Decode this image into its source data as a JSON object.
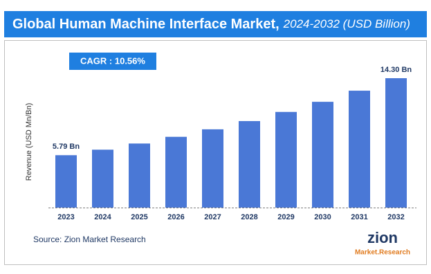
{
  "chart_data": {
    "type": "bar",
    "title": "Global Human Machine Interface Market,",
    "subtitle": "2024-2032 (USD Billion)",
    "annotation": "CAGR : 10.56%",
    "y_label": "Revenue (USD Mn/Bn)",
    "categories": [
      "2023",
      "2024",
      "2025",
      "2026",
      "2027",
      "2028",
      "2029",
      "2030",
      "2031",
      "2032"
    ],
    "values": [
      5.79,
      6.4,
      7.08,
      7.82,
      8.65,
      9.56,
      10.57,
      11.69,
      12.92,
      14.3
    ],
    "value_labels": [
      "5.79 Bn",
      null,
      null,
      null,
      null,
      null,
      null,
      null,
      null,
      "14.30 Bn"
    ],
    "color": "#4a78d6"
  },
  "source": "Source: Zion Market Research",
  "logo": {
    "name": "zion",
    "tagline": "Market.Research"
  }
}
